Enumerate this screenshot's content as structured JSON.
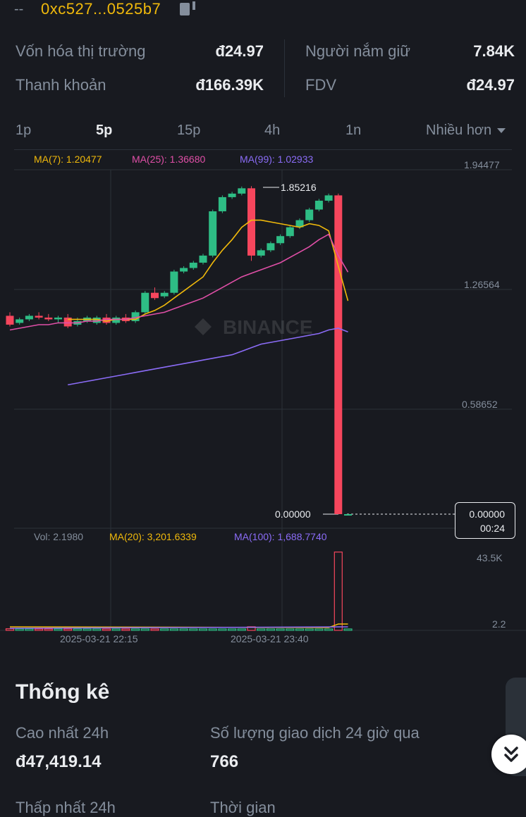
{
  "header": {
    "dash": "--",
    "address": "0xc527...0525b7"
  },
  "stats": {
    "market_cap_label": "Vốn hóa thị trường",
    "market_cap_value": "đ24.97",
    "holders_label": "Người nắm giữ",
    "holders_value": "7.84K",
    "liquidity_label": "Thanh khoản",
    "liquidity_value": "đ166.39K",
    "fdv_label": "FDV",
    "fdv_value": "đ24.97"
  },
  "tabs": {
    "t1": "1p",
    "t2": "5p",
    "t3": "15p",
    "t4": "4h",
    "t5": "1n",
    "more": "Nhiều hơn",
    "active": "5p"
  },
  "chart": {
    "ma7_label": "MA(7): 1.20477",
    "ma25_label": "MA(25): 1.36680",
    "ma99_label": "MA(99): 1.02933",
    "y_ticks": [
      "1.94477",
      "1.26564",
      "0.58652"
    ],
    "high_marker": "1.85216",
    "low_marker": "0.00000",
    "badge_price": "0.00000",
    "badge_countdown": "00:24",
    "watermark": "BINANCE",
    "vol_label": "Vol: 2.1980",
    "vol_ma20_label": "MA(20): 3,201.6339",
    "vol_ma100_label": "MA(100): 1,688.7740",
    "vol_ticks": [
      "43.5K",
      "2.2"
    ],
    "x_ticks": [
      "2025-03-21 22:15",
      "2025-03-21 23:40"
    ],
    "colors": {
      "up": "#2ebd85",
      "down": "#f6465d",
      "ma7": "#f0b90b",
      "ma25": "#e04fa7",
      "ma99": "#8b6cf7",
      "grid": "#2b3139",
      "text": "#848e9c"
    }
  },
  "chart_data": {
    "type": "candlestick",
    "categories": [
      "c01",
      "c02",
      "c03",
      "c04",
      "c05",
      "c06",
      "c07",
      "c08",
      "c09",
      "c10",
      "c11",
      "c12",
      "c13",
      "c14",
      "c15",
      "c16",
      "c17",
      "c18",
      "c19",
      "c20",
      "c21",
      "c22",
      "c23",
      "c24",
      "c25",
      "c26",
      "c27",
      "c28",
      "c29",
      "c30",
      "c31",
      "c32",
      "c33",
      "c34",
      "c35",
      "c36"
    ],
    "ylim": [
      0,
      2.0
    ],
    "y_ticks": [
      1.94477,
      1.26564,
      0.58652
    ],
    "candles": [
      {
        "o": 1.12,
        "h": 1.14,
        "l": 1.06,
        "c": 1.07
      },
      {
        "o": 1.08,
        "h": 1.11,
        "l": 1.07,
        "c": 1.1
      },
      {
        "o": 1.1,
        "h": 1.13,
        "l": 1.09,
        "c": 1.12
      },
      {
        "o": 1.12,
        "h": 1.14,
        "l": 1.1,
        "c": 1.11
      },
      {
        "o": 1.11,
        "h": 1.13,
        "l": 1.09,
        "c": 1.1
      },
      {
        "o": 1.1,
        "h": 1.12,
        "l": 1.08,
        "c": 1.11
      },
      {
        "o": 1.11,
        "h": 1.13,
        "l": 1.05,
        "c": 1.06
      },
      {
        "o": 1.07,
        "h": 1.11,
        "l": 1.06,
        "c": 1.09
      },
      {
        "o": 1.09,
        "h": 1.12,
        "l": 1.08,
        "c": 1.11
      },
      {
        "o": 1.08,
        "h": 1.12,
        "l": 1.07,
        "c": 1.11
      },
      {
        "o": 1.11,
        "h": 1.13,
        "l": 1.07,
        "c": 1.08
      },
      {
        "o": 1.08,
        "h": 1.12,
        "l": 1.07,
        "c": 1.11
      },
      {
        "o": 1.11,
        "h": 1.13,
        "l": 1.08,
        "c": 1.09
      },
      {
        "o": 1.09,
        "h": 1.15,
        "l": 1.08,
        "c": 1.14
      },
      {
        "o": 1.14,
        "h": 1.26,
        "l": 1.13,
        "c": 1.25
      },
      {
        "o": 1.25,
        "h": 1.28,
        "l": 1.21,
        "c": 1.22
      },
      {
        "o": 1.23,
        "h": 1.26,
        "l": 1.22,
        "c": 1.25
      },
      {
        "o": 1.25,
        "h": 1.38,
        "l": 1.24,
        "c": 1.37
      },
      {
        "o": 1.37,
        "h": 1.4,
        "l": 1.36,
        "c": 1.39
      },
      {
        "o": 1.39,
        "h": 1.43,
        "l": 1.38,
        "c": 1.42
      },
      {
        "o": 1.42,
        "h": 1.47,
        "l": 1.41,
        "c": 1.46
      },
      {
        "o": 1.46,
        "h": 1.72,
        "l": 1.45,
        "c": 1.71
      },
      {
        "o": 1.71,
        "h": 1.8,
        "l": 1.7,
        "c": 1.79
      },
      {
        "o": 1.79,
        "h": 1.82,
        "l": 1.78,
        "c": 1.81
      },
      {
        "o": 1.81,
        "h": 1.85,
        "l": 1.8,
        "c": 1.84
      },
      {
        "o": 1.84,
        "h": 1.85216,
        "l": 1.43,
        "c": 1.46
      },
      {
        "o": 1.46,
        "h": 1.5,
        "l": 1.45,
        "c": 1.49
      },
      {
        "o": 1.49,
        "h": 1.54,
        "l": 1.48,
        "c": 1.53
      },
      {
        "o": 1.53,
        "h": 1.58,
        "l": 1.52,
        "c": 1.57
      },
      {
        "o": 1.57,
        "h": 1.63,
        "l": 1.56,
        "c": 1.62
      },
      {
        "o": 1.62,
        "h": 1.67,
        "l": 1.61,
        "c": 1.66
      },
      {
        "o": 1.66,
        "h": 1.73,
        "l": 1.65,
        "c": 1.72
      },
      {
        "o": 1.72,
        "h": 1.78,
        "l": 1.71,
        "c": 1.77
      },
      {
        "o": 1.77,
        "h": 1.81,
        "l": 1.76,
        "c": 1.8
      },
      {
        "o": 1.8,
        "h": 1.81,
        "l": 0.0,
        "c": 0.0
      },
      {
        "o": 0.0,
        "h": 0.0,
        "l": 0.0,
        "c": 0.0
      }
    ],
    "series": [
      {
        "name": "MA(7)",
        "values": [
          null,
          null,
          null,
          null,
          null,
          null,
          1.1,
          1.1,
          1.1,
          1.1,
          1.09,
          1.1,
          1.1,
          1.1,
          1.13,
          1.15,
          1.18,
          1.22,
          1.26,
          1.3,
          1.34,
          1.42,
          1.49,
          1.55,
          1.62,
          1.66,
          1.66,
          1.65,
          1.64,
          1.63,
          1.62,
          1.64,
          1.63,
          1.6,
          1.4,
          1.20477
        ]
      },
      {
        "name": "MA(25)",
        "values": [
          1.04,
          1.05,
          1.06,
          1.07,
          1.07,
          1.08,
          1.08,
          1.08,
          1.09,
          1.09,
          1.1,
          1.1,
          1.1,
          1.11,
          1.12,
          1.13,
          1.14,
          1.16,
          1.18,
          1.2,
          1.22,
          1.25,
          1.28,
          1.31,
          1.34,
          1.36,
          1.38,
          1.4,
          1.42,
          1.45,
          1.48,
          1.51,
          1.55,
          1.58,
          1.46,
          1.3668
        ]
      },
      {
        "name": "MA(99)",
        "values": [
          null,
          null,
          null,
          null,
          null,
          null,
          0.73,
          0.74,
          0.75,
          0.76,
          0.77,
          0.78,
          0.79,
          0.8,
          0.81,
          0.82,
          0.83,
          0.84,
          0.85,
          0.86,
          0.87,
          0.88,
          0.89,
          0.9,
          0.92,
          0.94,
          0.96,
          0.97,
          0.98,
          0.99,
          1.0,
          1.01,
          1.02,
          1.04,
          1.05,
          1.02933
        ]
      }
    ],
    "volume": {
      "values": [
        900,
        300,
        200,
        300,
        400,
        600,
        800,
        300,
        200,
        300,
        200,
        300,
        200,
        300,
        300,
        200,
        300,
        300,
        400,
        300,
        400,
        300,
        300,
        300,
        400,
        2000,
        300,
        300,
        300,
        400,
        400,
        500,
        500,
        600,
        43500,
        2.2
      ],
      "ylim": [
        0,
        45000
      ]
    }
  },
  "statistics": {
    "title": "Thống kê",
    "high24_label": "Cao nhất 24h",
    "high24_value": "đ47,419.14",
    "tx24_label": "Số lượng giao dịch 24 giờ qua",
    "tx24_value": "766",
    "cut_left": "Thấp nhất 24h",
    "cut_right": "Thời gian"
  },
  "scroll_button_icon": "double-chevron-down-icon"
}
